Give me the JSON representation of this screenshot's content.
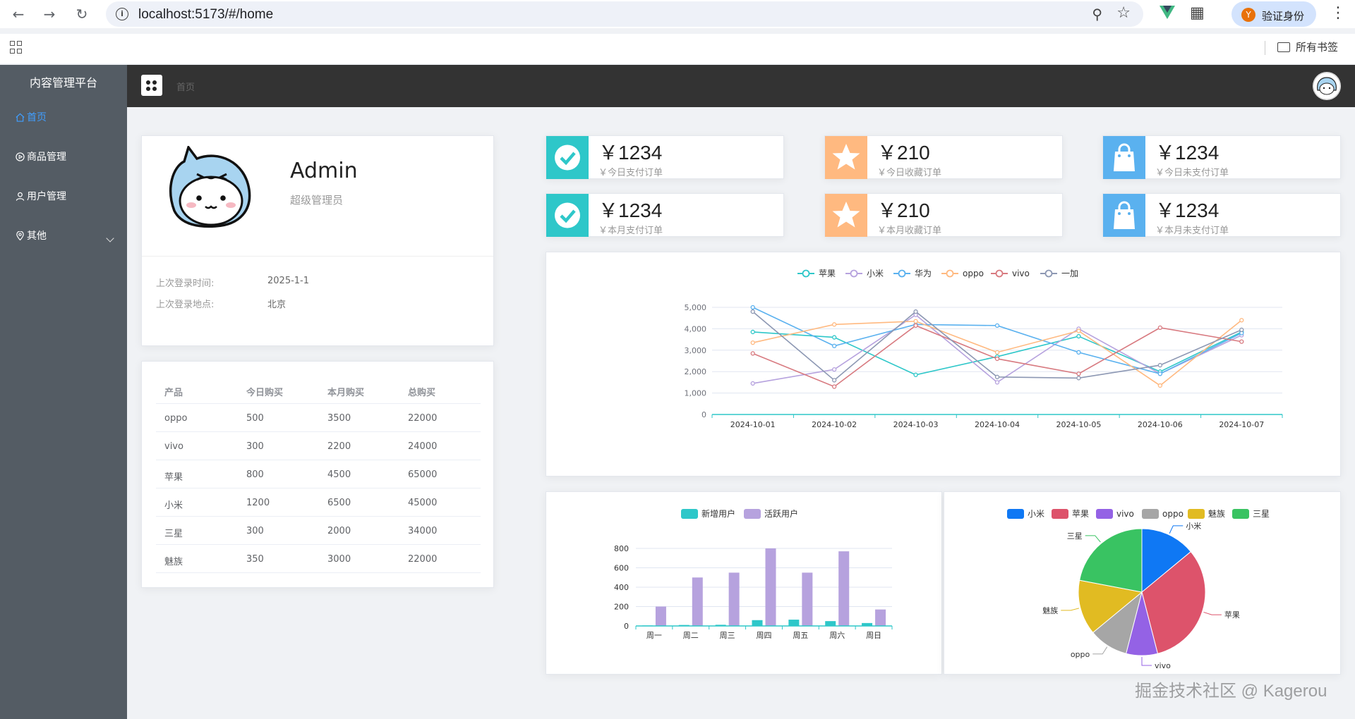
{
  "browser": {
    "url": "localhost:5173/#/home",
    "verify_label": "验证身份",
    "verify_avatar_letter": "Y",
    "bookmarks_label": "所有书签"
  },
  "sidebar": {
    "title": "内容管理平台",
    "items": [
      {
        "label": "首页",
        "icon": "home-icon"
      },
      {
        "label": "商品管理",
        "icon": "play-circle-icon"
      },
      {
        "label": "用户管理",
        "icon": "user-icon"
      },
      {
        "label": "其他",
        "icon": "location-icon"
      }
    ]
  },
  "header": {
    "breadcrumb": "首页"
  },
  "user": {
    "name": "Admin",
    "role": "超级管理员",
    "last_login_time_label": "上次登录时间:",
    "last_login_time": "2025-1-1",
    "last_login_place_label": "上次登录地点:",
    "last_login_place": "北京"
  },
  "table": {
    "headers": [
      "产品",
      "今日购买",
      "本月购买",
      "总购买"
    ],
    "rows": [
      [
        "oppo",
        "500",
        "3500",
        "22000"
      ],
      [
        "vivo",
        "300",
        "2200",
        "24000"
      ],
      [
        "苹果",
        "800",
        "4500",
        "65000"
      ],
      [
        "小米",
        "1200",
        "6500",
        "45000"
      ],
      [
        "三星",
        "300",
        "2000",
        "34000"
      ],
      [
        "魅族",
        "350",
        "3000",
        "22000"
      ]
    ]
  },
  "stats": [
    {
      "value": "￥1234",
      "label": "￥今日支付订单",
      "icon": "check-circle-icon",
      "color": "#2ec7c9"
    },
    {
      "value": "￥210",
      "label": "￥今日收藏订单",
      "icon": "star-icon",
      "color": "#ffb980"
    },
    {
      "value": "￥1234",
      "label": "￥今日未支付订单",
      "icon": "shopping-bag-icon",
      "color": "#5ab1ef"
    },
    {
      "value": "￥1234",
      "label": "￥本月支付订单",
      "icon": "check-circle-icon",
      "color": "#2ec7c9"
    },
    {
      "value": "￥210",
      "label": "￥本月收藏订单",
      "icon": "star-icon",
      "color": "#ffb980"
    },
    {
      "value": "￥1234",
      "label": "￥本月未支付订单",
      "icon": "shopping-bag-icon",
      "color": "#5ab1ef"
    }
  ],
  "watermark": "掘金技术社区 @ Kagerou",
  "chart_data": [
    {
      "type": "line",
      "x": [
        "2024-10-01",
        "2024-10-02",
        "2024-10-03",
        "2024-10-04",
        "2024-10-05",
        "2024-10-06",
        "2024-10-07"
      ],
      "ylim": [
        0,
        5000
      ],
      "yticks": [
        "0",
        "1,000",
        "2,000",
        "3,000",
        "4,000",
        "5,000"
      ],
      "legend_position": "top-center",
      "series": [
        {
          "name": "苹果",
          "color": "#2ec7c9",
          "values": [
            3850,
            3600,
            1850,
            2700,
            3650,
            2000,
            3850
          ]
        },
        {
          "name": "小米",
          "color": "#b6a2de",
          "values": [
            1450,
            2100,
            4650,
            1500,
            4000,
            1900,
            3700
          ]
        },
        {
          "name": "华为",
          "color": "#5ab1ef",
          "values": [
            5000,
            3200,
            4200,
            4150,
            2900,
            1900,
            3800
          ]
        },
        {
          "name": "oppo",
          "color": "#ffb980",
          "values": [
            3350,
            4200,
            4350,
            2900,
            3900,
            1350,
            4400
          ]
        },
        {
          "name": "vivo",
          "color": "#d87a80",
          "values": [
            2850,
            1300,
            4150,
            2600,
            1900,
            4050,
            3400
          ]
        },
        {
          "name": "一加",
          "color": "#8d98b3",
          "values": [
            4800,
            1600,
            4800,
            1750,
            1700,
            2300,
            3950
          ]
        }
      ]
    },
    {
      "type": "bar",
      "categories": [
        "周一",
        "周二",
        "周三",
        "周四",
        "周五",
        "周六",
        "周日"
      ],
      "ylim": [
        0,
        800
      ],
      "yticks": [
        "0",
        "200",
        "400",
        "600",
        "800"
      ],
      "legend_position": "top-center",
      "series": [
        {
          "name": "新增用户",
          "color": "#2ec7c9",
          "values": [
            5,
            10,
            12,
            60,
            65,
            50,
            30
          ]
        },
        {
          "name": "活跃用户",
          "color": "#b6a2de",
          "values": [
            200,
            500,
            550,
            800,
            550,
            770,
            170
          ]
        }
      ]
    },
    {
      "type": "pie",
      "legend_position": "top-center",
      "slices": [
        {
          "name": "小米",
          "value": 14,
          "color": "#0f78f4"
        },
        {
          "name": "苹果",
          "value": 32,
          "color": "#dd536b"
        },
        {
          "name": "vivo",
          "value": 8,
          "color": "#9462e5"
        },
        {
          "name": "oppo",
          "value": 10,
          "color": "#a6a6a6"
        },
        {
          "name": "魅族",
          "value": 14,
          "color": "#e1bb22"
        },
        {
          "name": "三星",
          "value": 22,
          "color": "#39c362"
        }
      ]
    }
  ]
}
